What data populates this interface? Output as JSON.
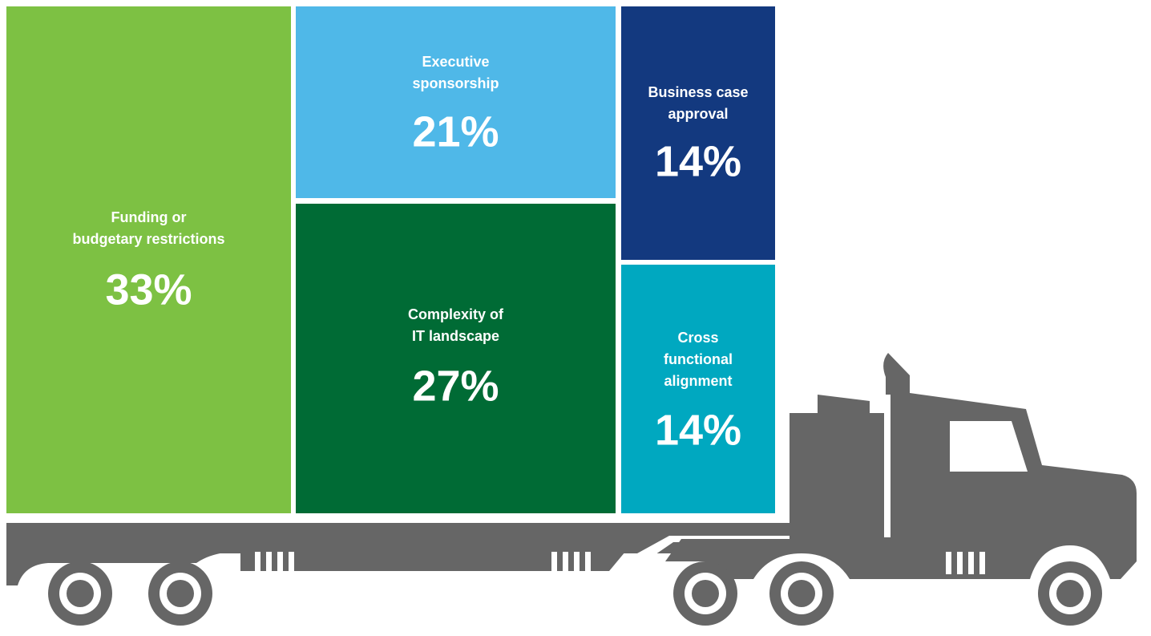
{
  "chart_data": {
    "type": "treemap",
    "categories": [
      [
        "Funding or",
        "budgetary restrictions"
      ],
      [
        "Executive",
        "sponsorship"
      ],
      [
        "Complexity of",
        "IT landscape"
      ],
      [
        "Business case",
        "approval"
      ],
      [
        "Cross",
        "functional",
        "alignment"
      ]
    ],
    "values": [
      33,
      21,
      27,
      14,
      14
    ],
    "value_labels": [
      "33%",
      "21%",
      "27%",
      "14%",
      "14%"
    ],
    "colors": [
      "#7dc143",
      "#4fb8e8",
      "#006b35",
      "#13397f",
      "#00a8c0"
    ]
  }
}
